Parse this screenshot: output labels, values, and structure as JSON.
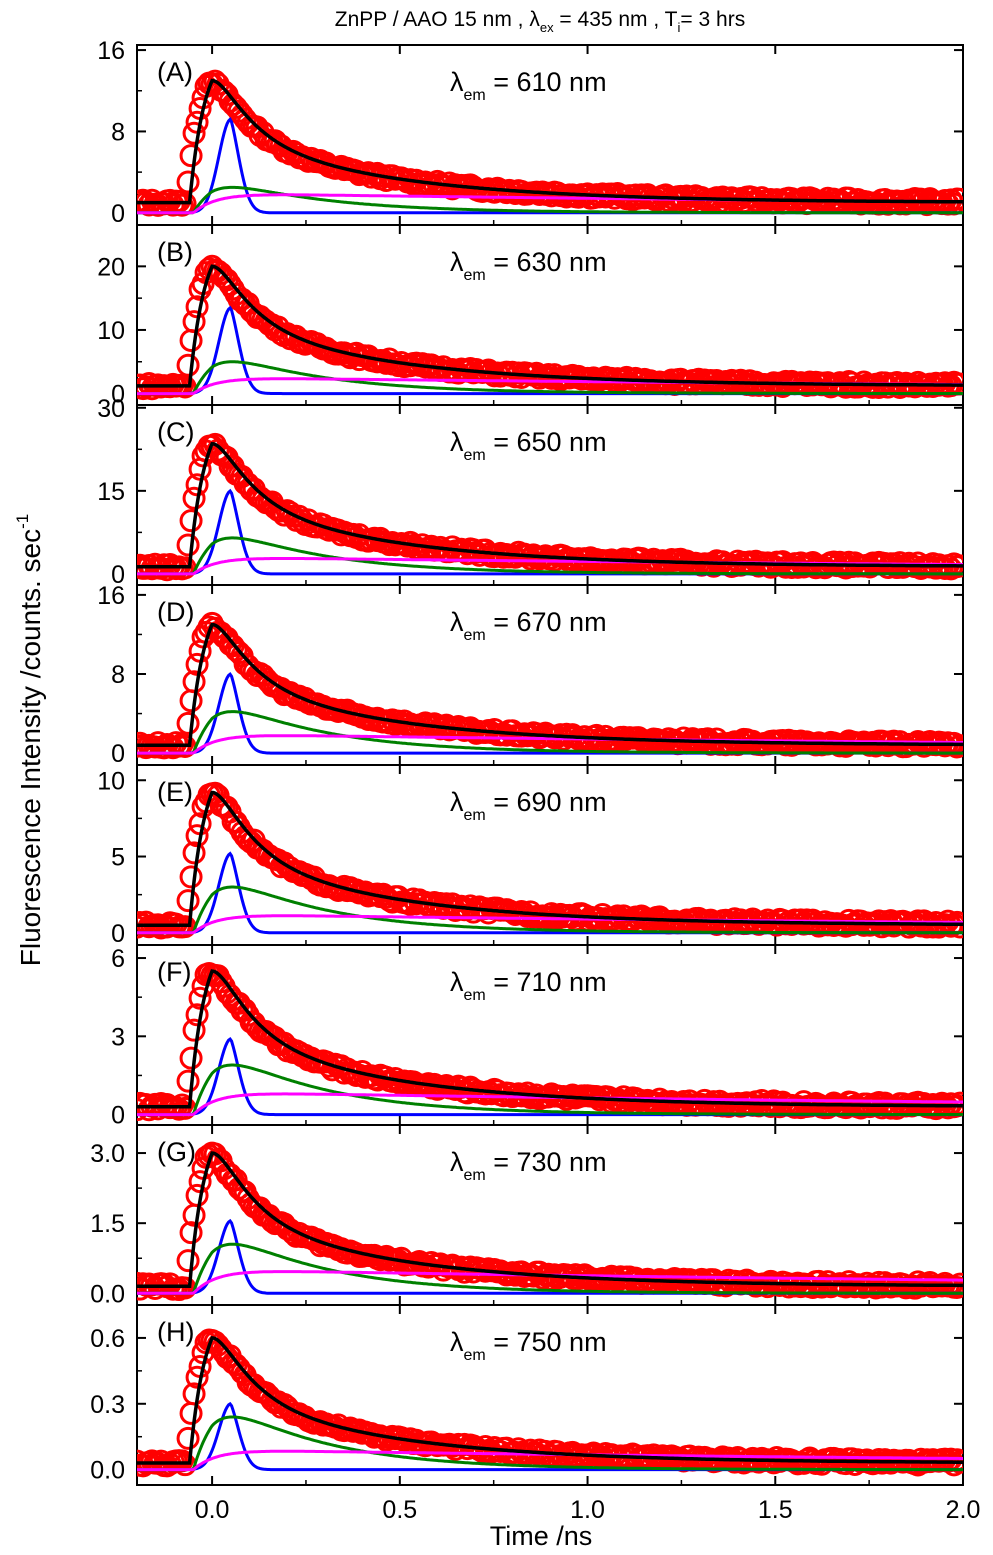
{
  "figure": {
    "title": {
      "prefix": "ZnPP / AAO 15 nm , ",
      "lambda": "λ",
      "ex_sub": "ex",
      "mid": " = 435 nm , T",
      "i_sub": "i",
      "suffix": "= 3 hrs"
    },
    "ylabel": "Fluorescence Intensity /counts. sec",
    "ylabel_sup": "-1",
    "xlabel": "Time /ns",
    "emission_prefix": "λ",
    "emission_sub": "em",
    "colors": {
      "data": "#ff0000",
      "fit": "#000000",
      "comp1": "#0000ff",
      "comp2": "#008000",
      "comp3": "#ff00ff",
      "frame": "#000000"
    }
  },
  "chart_data": [
    {
      "type": "line",
      "panel": "(A)",
      "emission": "= 610 nm",
      "x_range": [
        -0.2,
        2.0
      ],
      "ylim": [
        -1.2,
        16.5
      ],
      "yticks": [
        0,
        8,
        16
      ],
      "ytick_labels": [
        "0",
        "8",
        "16"
      ],
      "baseline": 1.0,
      "peak": 13.0,
      "components": [
        9.2,
        2.5,
        1.9
      ],
      "tail": 1.0
    },
    {
      "type": "line",
      "panel": "(B)",
      "emission": "= 630 nm",
      "x_range": [
        -0.2,
        2.0
      ],
      "ylim": [
        -1.8,
        26.5
      ],
      "yticks": [
        0,
        10,
        20
      ],
      "ytick_labels": [
        "0",
        "10",
        "20"
      ],
      "baseline": 1.2,
      "peak": 20.0,
      "components": [
        13.5,
        5.0,
        2.5
      ],
      "tail": 1.2
    },
    {
      "type": "line",
      "panel": "(C)",
      "emission": "= 650 nm",
      "x_range": [
        -0.2,
        2.0
      ],
      "ylim": [
        -2.0,
        30.5
      ],
      "yticks": [
        0,
        15,
        30
      ],
      "ytick_labels": [
        "0",
        "15",
        "30"
      ],
      "baseline": 1.3,
      "peak": 23.5,
      "components": [
        15.0,
        6.5,
        3.0
      ],
      "tail": 1.3
    },
    {
      "type": "line",
      "panel": "(D)",
      "emission": "= 670 nm",
      "x_range": [
        -0.2,
        2.0
      ],
      "ylim": [
        -1.2,
        17.0
      ],
      "yticks": [
        0,
        8,
        16
      ],
      "ytick_labels": [
        "0",
        "8",
        "16"
      ],
      "baseline": 0.8,
      "peak": 13.0,
      "components": [
        8.0,
        4.2,
        1.9
      ],
      "tail": 0.8
    },
    {
      "type": "line",
      "panel": "(E)",
      "emission": "= 690 nm",
      "x_range": [
        -0.2,
        2.0
      ],
      "ylim": [
        -0.8,
        11.0
      ],
      "yticks": [
        0,
        5,
        10
      ],
      "ytick_labels": [
        "0",
        "5",
        "10"
      ],
      "baseline": 0.5,
      "peak": 9.2,
      "components": [
        5.2,
        3.0,
        1.2
      ],
      "tail": 0.5
    },
    {
      "type": "line",
      "panel": "(F)",
      "emission": "= 710 nm",
      "x_range": [
        -0.2,
        2.0
      ],
      "ylim": [
        -0.4,
        6.5
      ],
      "yticks": [
        0,
        3,
        6
      ],
      "ytick_labels": [
        "0",
        "3",
        "6"
      ],
      "baseline": 0.3,
      "peak": 5.5,
      "components": [
        2.9,
        1.9,
        0.85
      ],
      "tail": 0.3
    },
    {
      "type": "line",
      "panel": "(G)",
      "emission": "= 730 nm",
      "x_range": [
        -0.2,
        2.0
      ],
      "ylim": [
        -0.25,
        3.6
      ],
      "yticks": [
        0.0,
        1.5,
        3.0
      ],
      "ytick_labels": [
        "0.0",
        "1.5",
        "3.0"
      ],
      "baseline": 0.15,
      "peak": 3.0,
      "components": [
        1.55,
        1.05,
        0.5
      ],
      "tail": 0.15
    },
    {
      "type": "line",
      "panel": "(H)",
      "emission": "= 750 nm",
      "x_range": [
        -0.2,
        2.0
      ],
      "ylim": [
        -0.07,
        0.75
      ],
      "yticks": [
        0.0,
        0.3,
        0.6
      ],
      "ytick_labels": [
        "0.0",
        "0.3",
        "0.6"
      ],
      "baseline": 0.03,
      "peak": 0.6,
      "components": [
        0.3,
        0.24,
        0.09
      ],
      "tail": 0.03
    }
  ],
  "x_axis": {
    "ticks": [
      0.0,
      0.5,
      1.0,
      1.5,
      2.0
    ],
    "tick_labels": [
      "0.0",
      "0.5",
      "1.0",
      "1.5",
      "2.0"
    ]
  }
}
